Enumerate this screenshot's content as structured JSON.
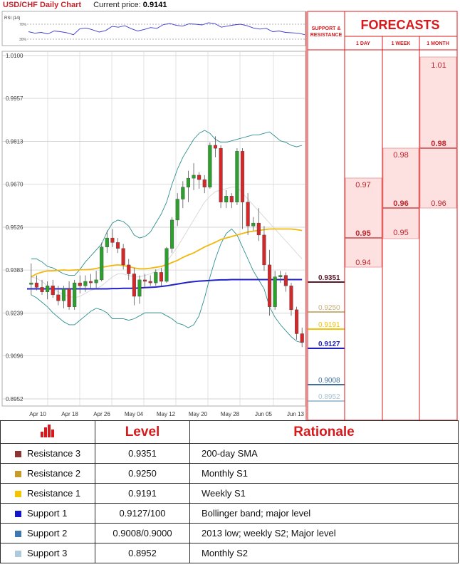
{
  "header": {
    "title": "USD/CHF Daily Chart",
    "price_label": "Current price:",
    "price_value": "0.9141"
  },
  "chart_data": {
    "type": "candlestick",
    "title": "USD/CHF Daily Chart",
    "rsi": {
      "label": "RSI (14)",
      "ticks": [
        "70%",
        "30%"
      ],
      "values": [
        50,
        46,
        48,
        44,
        52,
        50,
        47,
        42,
        58,
        60,
        55,
        49,
        53,
        64,
        62,
        66,
        58,
        52,
        56,
        61,
        59,
        69,
        72,
        67,
        65,
        71,
        70,
        68,
        74,
        72,
        62,
        65,
        68,
        70,
        66,
        60,
        57,
        59,
        50,
        52,
        48,
        47,
        46,
        42
      ]
    },
    "y_ticks": [
      "1.0100",
      "0.9957",
      "0.9813",
      "0.9670",
      "0.9526",
      "0.9383",
      "0.9239",
      "0.9096",
      "0.8952"
    ],
    "x_ticks": [
      "Apr 10",
      "Apr 18",
      "Apr 26",
      "May 04",
      "May 12",
      "May 20",
      "May 28",
      "Jun 05",
      "Jun 13"
    ],
    "ylim": [
      0.8952,
      1.01
    ],
    "candles": [
      [
        0.9335,
        0.9405,
        0.93,
        0.934
      ],
      [
        0.934,
        0.9365,
        0.9315,
        0.9325
      ],
      [
        0.9325,
        0.935,
        0.93,
        0.931
      ],
      [
        0.931,
        0.9345,
        0.9285,
        0.933
      ],
      [
        0.933,
        0.935,
        0.929,
        0.93
      ],
      [
        0.93,
        0.933,
        0.9265,
        0.928
      ],
      [
        0.928,
        0.933,
        0.9255,
        0.932
      ],
      [
        0.932,
        0.9345,
        0.925,
        0.926
      ],
      [
        0.926,
        0.935,
        0.925,
        0.934
      ],
      [
        0.934,
        0.9365,
        0.9305,
        0.933
      ],
      [
        0.933,
        0.9365,
        0.931,
        0.9345
      ],
      [
        0.9345,
        0.937,
        0.932,
        0.934
      ],
      [
        0.934,
        0.938,
        0.932,
        0.935
      ],
      [
        0.935,
        0.9475,
        0.9345,
        0.946
      ],
      [
        0.946,
        0.9515,
        0.944,
        0.949
      ],
      [
        0.949,
        0.952,
        0.946,
        0.9475
      ],
      [
        0.9475,
        0.949,
        0.944,
        0.9455
      ],
      [
        0.9455,
        0.947,
        0.9385,
        0.94
      ],
      [
        0.94,
        0.942,
        0.935,
        0.937
      ],
      [
        0.937,
        0.939,
        0.9265,
        0.9295
      ],
      [
        0.9295,
        0.9365,
        0.927,
        0.935
      ],
      [
        0.935,
        0.937,
        0.9325,
        0.9345
      ],
      [
        0.9345,
        0.9365,
        0.933,
        0.934
      ],
      [
        0.934,
        0.9385,
        0.933,
        0.9375
      ],
      [
        0.9375,
        0.939,
        0.933,
        0.9345
      ],
      [
        0.9345,
        0.946,
        0.934,
        0.9455
      ],
      [
        0.9455,
        0.956,
        0.944,
        0.955
      ],
      [
        0.955,
        0.964,
        0.953,
        0.962
      ],
      [
        0.962,
        0.968,
        0.959,
        0.966
      ],
      [
        0.966,
        0.9715,
        0.961,
        0.969
      ],
      [
        0.969,
        0.974,
        0.965,
        0.97
      ],
      [
        0.97,
        0.971,
        0.9655,
        0.9685
      ],
      [
        0.9685,
        0.97,
        0.964,
        0.966
      ],
      [
        0.966,
        0.981,
        0.9655,
        0.98
      ],
      [
        0.98,
        0.983,
        0.976,
        0.979
      ],
      [
        0.979,
        0.98,
        0.959,
        0.961
      ],
      [
        0.961,
        0.965,
        0.959,
        0.963
      ],
      [
        0.963,
        0.964,
        0.959,
        0.961
      ],
      [
        0.961,
        0.979,
        0.96,
        0.978
      ],
      [
        0.978,
        0.979,
        0.952,
        0.961
      ],
      [
        0.961,
        0.964,
        0.95,
        0.953
      ],
      [
        0.953,
        0.956,
        0.9515,
        0.954
      ],
      [
        0.954,
        0.959,
        0.948,
        0.95
      ],
      [
        0.95,
        0.953,
        0.938,
        0.94
      ],
      [
        0.94,
        0.945,
        0.923,
        0.926
      ],
      [
        0.926,
        0.938,
        0.925,
        0.936
      ],
      [
        0.936,
        0.938,
        0.934,
        0.9365
      ],
      [
        0.9365,
        0.9375,
        0.931,
        0.933
      ],
      [
        0.933,
        0.934,
        0.923,
        0.925
      ],
      [
        0.925,
        0.926,
        0.915,
        0.917
      ],
      [
        0.917,
        0.919,
        0.9125,
        0.9141
      ]
    ],
    "sma_yellow": [
      0.936,
      0.937,
      0.9376,
      0.938,
      0.938,
      0.9382,
      0.9383,
      0.9382,
      0.9383,
      0.9384,
      0.9384,
      0.9385,
      0.9388,
      0.9392,
      0.9395,
      0.9398,
      0.94,
      0.9398,
      0.9394,
      0.939,
      0.9387,
      0.9387,
      0.9389,
      0.9392,
      0.9395,
      0.94,
      0.9408,
      0.9415,
      0.9425,
      0.9433,
      0.944,
      0.945,
      0.946,
      0.9468,
      0.9476,
      0.9485,
      0.949,
      0.9495,
      0.95,
      0.9505,
      0.951,
      0.9513,
      0.9515,
      0.9518,
      0.952,
      0.952,
      0.952,
      0.952,
      0.952,
      0.9518,
      0.9515
    ],
    "sma_blue": [
      0.932,
      0.932,
      0.932,
      0.932,
      0.932,
      0.932,
      0.932,
      0.932,
      0.932,
      0.932,
      0.932,
      0.932,
      0.932,
      0.932,
      0.932,
      0.9321,
      0.9321,
      0.9322,
      0.9322,
      0.9322,
      0.9323,
      0.9324,
      0.9325,
      0.9326,
      0.9328,
      0.933,
      0.9333,
      0.9336,
      0.9339,
      0.9342,
      0.9344,
      0.9346,
      0.9347,
      0.9348,
      0.9349,
      0.935,
      0.935,
      0.9351,
      0.9351,
      0.9351,
      0.9351,
      0.9351,
      0.9351,
      0.9351,
      0.9351,
      0.9351,
      0.9351,
      0.9351,
      0.9351,
      0.9351,
      0.9351
    ],
    "bb_upper": [
      0.942,
      0.942,
      0.941,
      0.9395,
      0.939,
      0.938,
      0.937,
      0.9365,
      0.9365,
      0.9385,
      0.941,
      0.943,
      0.945,
      0.947,
      0.951,
      0.954,
      0.955,
      0.9545,
      0.953,
      0.95,
      0.949,
      0.9495,
      0.951,
      0.954,
      0.957,
      0.961,
      0.967,
      0.972,
      0.976,
      0.979,
      0.982,
      0.984,
      0.985,
      0.984,
      0.982,
      0.981,
      0.981,
      0.9815,
      0.982,
      0.9825,
      0.983,
      0.9835,
      0.9835,
      0.984,
      0.9845,
      0.983,
      0.9815,
      0.981,
      0.98,
      0.9795,
      0.98
    ],
    "bb_lower": [
      0.93,
      0.929,
      0.9275,
      0.926,
      0.924,
      0.9225,
      0.921,
      0.92,
      0.92,
      0.9215,
      0.923,
      0.9245,
      0.9255,
      0.925,
      0.924,
      0.922,
      0.922,
      0.922,
      0.9215,
      0.922,
      0.923,
      0.924,
      0.924,
      0.924,
      0.924,
      0.923,
      0.922,
      0.9205,
      0.92,
      0.919,
      0.92,
      0.923,
      0.929,
      0.936,
      0.942,
      0.947,
      0.9505,
      0.952,
      0.95,
      0.946,
      0.942,
      0.938,
      0.935,
      0.932,
      0.926,
      0.9225,
      0.92,
      0.918,
      0.916,
      0.9145,
      0.914
    ],
    "bb_mid": [
      0.936,
      0.9355,
      0.9345,
      0.933,
      0.932,
      0.931,
      0.93,
      0.9295,
      0.929,
      0.9295,
      0.9305,
      0.9315,
      0.932,
      0.933,
      0.9345,
      0.936,
      0.937,
      0.937,
      0.9365,
      0.936,
      0.936,
      0.9365,
      0.937,
      0.938,
      0.939,
      0.941,
      0.9435,
      0.946,
      0.949,
      0.952,
      0.955,
      0.958,
      0.961,
      0.963,
      0.9645,
      0.965,
      0.9655,
      0.966,
      0.966,
      0.964,
      0.962,
      0.96,
      0.958,
      0.956,
      0.954,
      0.952,
      0.95,
      0.948,
      0.946,
      0.944,
      0.942
    ]
  },
  "levels_axis": [
    {
      "value": "0.9351",
      "color": "#5a1a2a"
    },
    {
      "value": "0.9250",
      "color": "#c8b27a"
    },
    {
      "value": "0.9191",
      "color": "#f5c400"
    },
    {
      "value": "0.9127",
      "color": "#1f1fbf"
    },
    {
      "value": "0.9008",
      "color": "#3f6fa0"
    },
    {
      "value": "0.8952",
      "color": "#a7c3d6"
    }
  ],
  "forecast": {
    "sr_label_1": "SUPPORT &",
    "sr_label_2": "RESISTANCE",
    "title": "FORECASTS",
    "cols": [
      "1 DAY",
      "1 WEEK",
      "1 MONTH"
    ],
    "day": {
      "low": "0.94",
      "mid": "0.95",
      "high": "0.97"
    },
    "week": {
      "low": "0.95",
      "mid": "0.96",
      "high": "0.98"
    },
    "month": {
      "low": "0.96",
      "mid": "0.98",
      "high": "1.01"
    }
  },
  "table": {
    "headers": {
      "level": "Level",
      "rationale": "Rationale"
    },
    "rows": [
      {
        "label": "Resistance 3",
        "level": "0.9351",
        "rationale": "200-day SMA",
        "color": "#8c3434"
      },
      {
        "label": "Resistance 2",
        "level": "0.9250",
        "rationale": "Monthly S1",
        "color": "#c79a2a"
      },
      {
        "label": "Resistance 1",
        "level": "0.9191",
        "rationale": "Weekly S1",
        "color": "#f5c400"
      },
      {
        "label": "Support 1",
        "level": "0.9127/100",
        "rationale": "Bollinger band; major level",
        "color": "#1515c8"
      },
      {
        "label": "Support 2",
        "level": "0.9008/0.9000",
        "rationale": "2013 low; weekly S2; Major level",
        "color": "#3f78b0"
      },
      {
        "label": "Support 3",
        "level": "0.8952",
        "rationale": "Monthly S2",
        "color": "#aec9dc"
      }
    ]
  }
}
